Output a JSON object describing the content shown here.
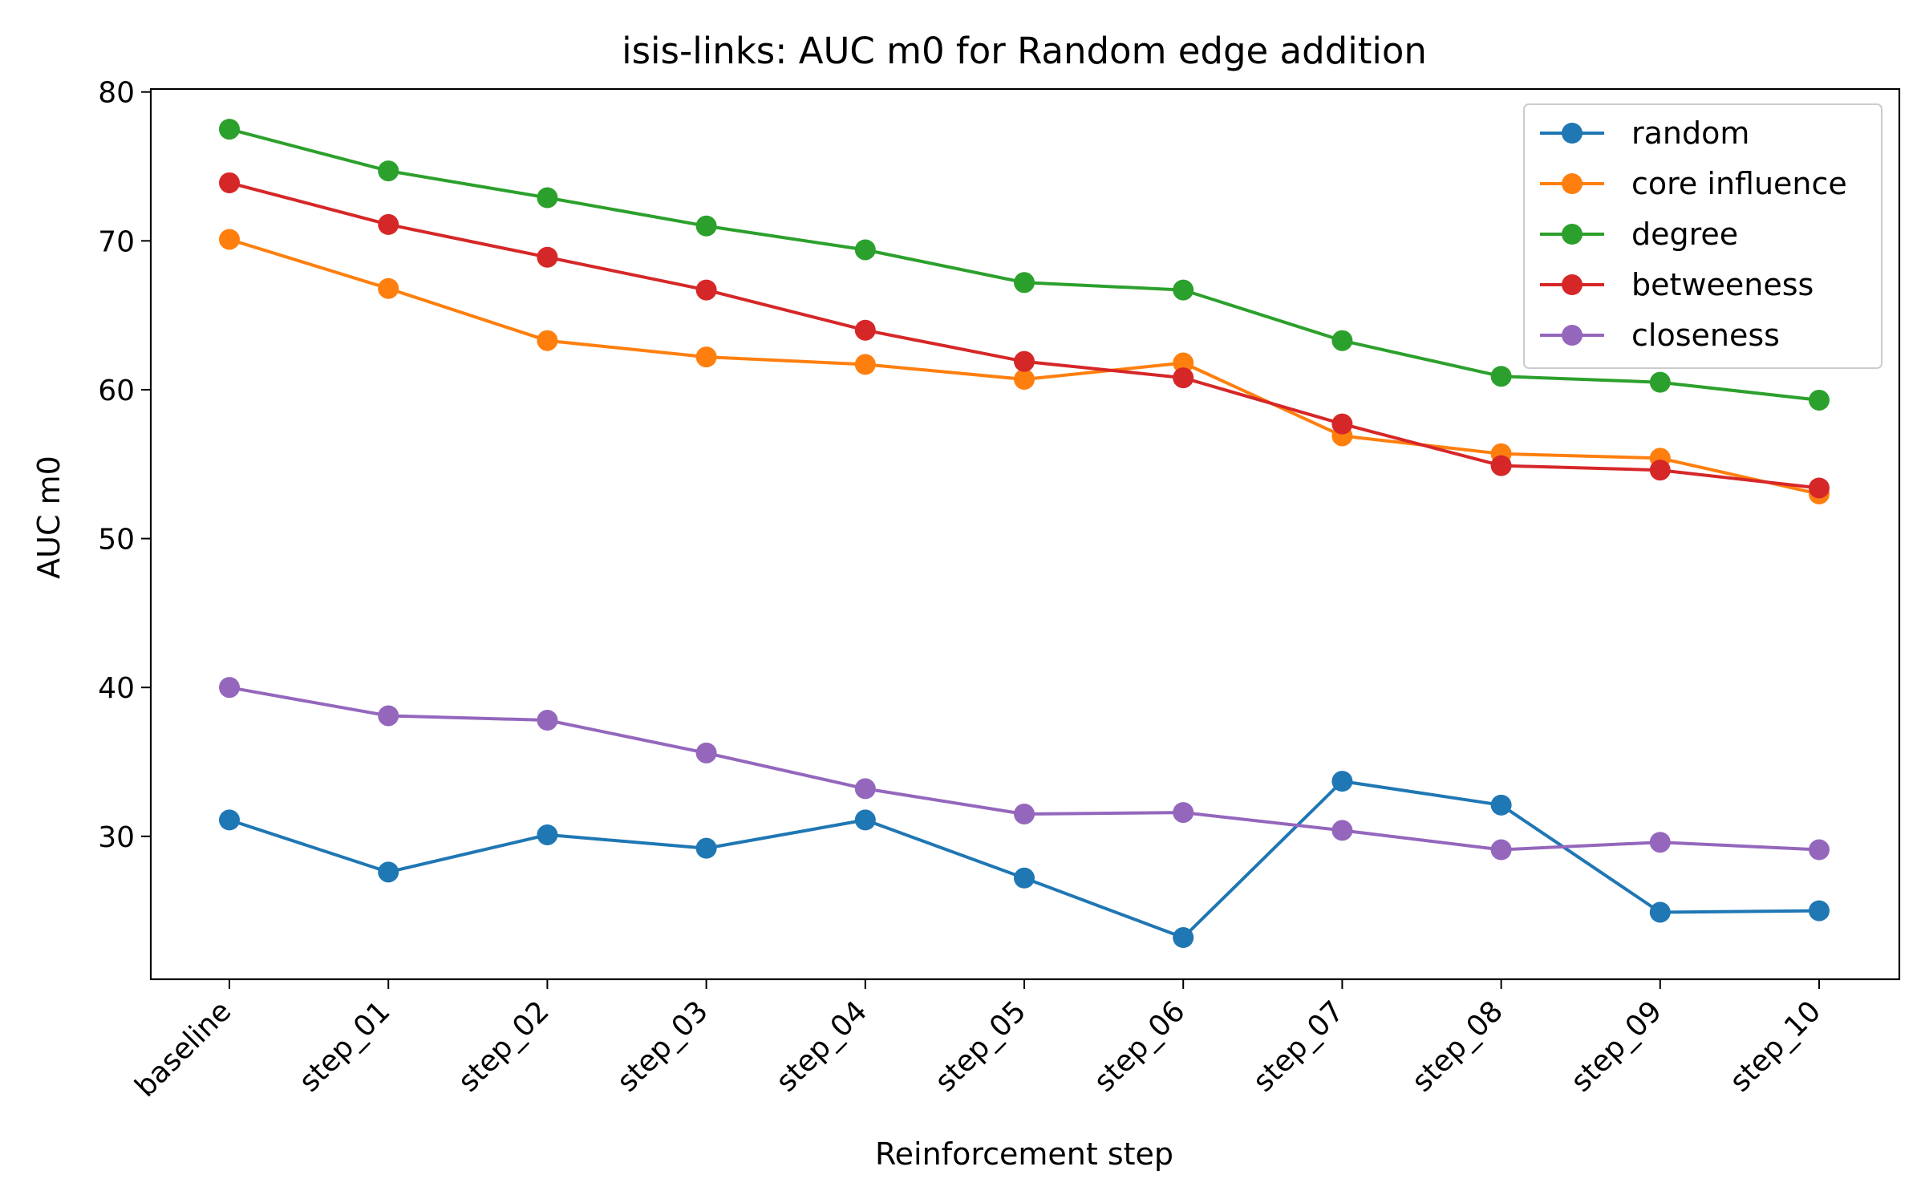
{
  "chart_data": {
    "type": "line",
    "title": "isis-links: AUC m0 for Random edge addition",
    "xlabel": "Reinforcement step",
    "ylabel": "AUC m0",
    "categories": [
      "baseline",
      "step_01",
      "step_02",
      "step_03",
      "step_04",
      "step_05",
      "step_06",
      "step_07",
      "step_08",
      "step_09",
      "step_10"
    ],
    "ylim": [
      20.4,
      80.2
    ],
    "yticks": [
      30,
      40,
      50,
      60,
      70,
      80
    ],
    "ytick_labels": [
      "30",
      "40",
      "50",
      "60",
      "70",
      "80"
    ],
    "grid": false,
    "legend_position": "top-right",
    "series": [
      {
        "name": "random",
        "color": "#1f77b4",
        "values": [
          31.1,
          27.6,
          30.1,
          29.2,
          31.1,
          27.2,
          23.2,
          33.7,
          32.1,
          24.9,
          25.0
        ]
      },
      {
        "name": "core influence",
        "color": "#ff7f0e",
        "values": [
          70.1,
          66.8,
          63.3,
          62.2,
          61.7,
          60.7,
          61.8,
          56.9,
          55.7,
          55.4,
          53.0
        ]
      },
      {
        "name": "degree",
        "color": "#2ca02c",
        "values": [
          77.5,
          74.7,
          72.9,
          71.0,
          69.4,
          67.2,
          66.7,
          63.3,
          60.9,
          60.5,
          59.3
        ]
      },
      {
        "name": "betweeness",
        "color": "#d62728",
        "values": [
          73.9,
          71.1,
          68.9,
          66.7,
          64.0,
          61.9,
          60.8,
          57.7,
          54.9,
          54.6,
          53.4
        ]
      },
      {
        "name": "closeness",
        "color": "#9467bd",
        "values": [
          40.0,
          38.1,
          37.8,
          35.6,
          33.2,
          31.5,
          31.6,
          30.4,
          29.1,
          29.6,
          29.1
        ]
      }
    ]
  }
}
